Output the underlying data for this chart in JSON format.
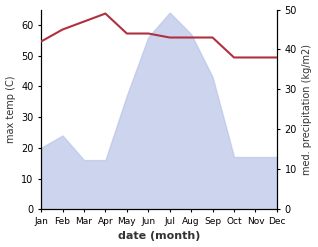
{
  "months": [
    "Jan",
    "Feb",
    "Mar",
    "Apr",
    "May",
    "Jun",
    "Jul",
    "Aug",
    "Sep",
    "Oct",
    "Nov",
    "Dec"
  ],
  "max_temp": [
    20,
    24,
    16,
    16,
    37,
    56,
    64,
    57,
    43,
    17,
    17,
    17
  ],
  "precipitation": [
    42,
    45,
    47,
    49,
    44,
    44,
    43,
    43,
    43,
    38,
    38,
    38
  ],
  "temp_ylim": [
    0,
    65
  ],
  "precip_ylim": [
    0,
    50
  ],
  "temp_yticks": [
    0,
    10,
    20,
    30,
    40,
    50,
    60
  ],
  "precip_yticks": [
    0,
    10,
    20,
    30,
    40,
    50
  ],
  "temp_fill_color": "#b8c4e8",
  "temp_fill_alpha": 0.7,
  "precip_color": "#b03040",
  "xlabel": "date (month)",
  "ylabel_left": "max temp (C)",
  "ylabel_right": "med. precipitation (kg/m2)",
  "bg_color": "#ffffff"
}
